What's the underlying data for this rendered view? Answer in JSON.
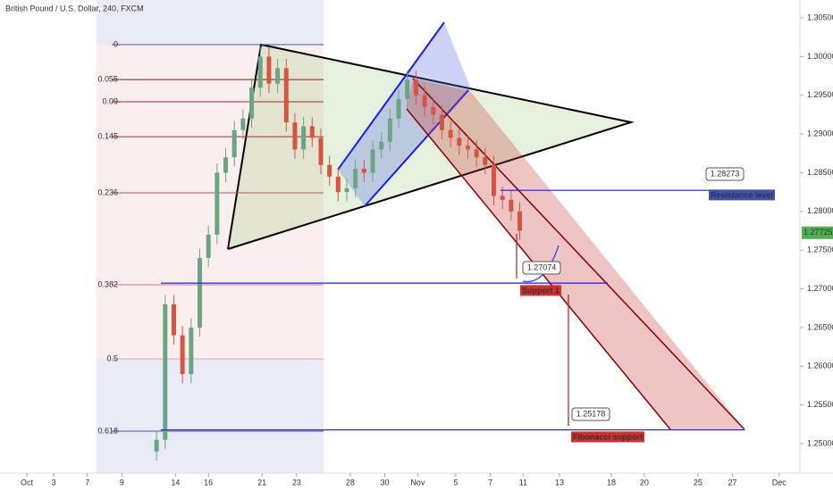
{
  "chart_data": {
    "type": "candlestick",
    "title": "British Pound / U.S. Dollar, 240, FXCM",
    "up_color": "#6ba583",
    "down_color": "#d75442",
    "xlim": [
      -1.55,
      44.7
    ],
    "ylim": [
      1.24389,
      1.30731
    ],
    "xticks": [
      {
        "value": 0,
        "label": "Oct"
      },
      {
        "value": 1.55,
        "label": "3"
      },
      {
        "value": 3.5,
        "label": "7"
      },
      {
        "value": 5.5,
        "label": "9"
      },
      {
        "value": 8.6,
        "label": "14"
      },
      {
        "value": 10.5,
        "label": "16"
      },
      {
        "value": 13.6,
        "label": "21"
      },
      {
        "value": 15.6,
        "label": "23"
      },
      {
        "value": 18.7,
        "label": "28"
      },
      {
        "value": 20.7,
        "label": "30"
      },
      {
        "value": 22.6,
        "label": "Nov"
      },
      {
        "value": 24.8,
        "label": "5"
      },
      {
        "value": 26.8,
        "label": "7"
      },
      {
        "value": 28.7,
        "label": "11"
      },
      {
        "value": 30.8,
        "label": "13"
      },
      {
        "value": 33.8,
        "label": "18"
      },
      {
        "value": 35.7,
        "label": "20"
      },
      {
        "value": 38.8,
        "label": "25"
      },
      {
        "value": 40.8,
        "label": "27"
      },
      {
        "value": 43.5,
        "label": "Dec"
      }
    ],
    "yticks": [
      {
        "value": 1.25,
        "label": "1.25000"
      },
      {
        "value": 1.255,
        "label": "1.25500"
      },
      {
        "value": 1.26,
        "label": "1.26000"
      },
      {
        "value": 1.265,
        "label": "1.26500"
      },
      {
        "value": 1.27,
        "label": "1.27000"
      },
      {
        "value": 1.275,
        "label": "1.27500"
      },
      {
        "value": 1.28,
        "label": "1.28000"
      },
      {
        "value": 1.285,
        "label": "1.28500"
      },
      {
        "value": 1.29,
        "label": "1.29000"
      },
      {
        "value": 1.295,
        "label": "1.29500"
      },
      {
        "value": 1.3,
        "label": "1.30000"
      },
      {
        "value": 1.305,
        "label": "1.30500"
      }
    ],
    "x": [
      7.5,
      8,
      8.5,
      9,
      9.5,
      10,
      10.5,
      11,
      11.5,
      12,
      12.5,
      13,
      13.5,
      14,
      14.5,
      15,
      15.5,
      16,
      16.5,
      17,
      17.5,
      18,
      18.5,
      19,
      19.5,
      20,
      20.5,
      21,
      21.5,
      22,
      22.5,
      23,
      23.5,
      24,
      24.5,
      25,
      25.5,
      26,
      26.5,
      27,
      27.5,
      28,
      28.5
    ],
    "open": [
      1.249,
      1.2505,
      1.268,
      1.264,
      1.259,
      1.265,
      1.274,
      1.277,
      1.285,
      1.287,
      1.2905,
      1.292,
      1.296,
      1.3,
      1.2965,
      1.2985,
      1.2915,
      1.288,
      1.291,
      1.2895,
      1.286,
      1.2845,
      1.2825,
      1.283,
      1.2855,
      1.285,
      1.288,
      1.289,
      1.292,
      1.2945,
      1.297,
      1.295,
      1.2935,
      1.2925,
      1.2905,
      1.2895,
      1.2885,
      1.288,
      1.287,
      1.286,
      1.282,
      1.2815,
      1.28
    ],
    "high": [
      1.2517,
      1.2692,
      1.2692,
      1.2652,
      1.2662,
      1.2752,
      1.2782,
      1.2862,
      1.2882,
      1.2917,
      1.2932,
      1.2972,
      1.3012,
      1.3012,
      1.2997,
      1.2997,
      1.2927,
      1.2922,
      1.2922,
      1.2907,
      1.2872,
      1.2857,
      1.2842,
      1.2867,
      1.2867,
      1.2892,
      1.2902,
      1.2932,
      1.2957,
      1.2982,
      1.2982,
      1.2962,
      1.2947,
      1.2937,
      1.2917,
      1.2907,
      1.2897,
      1.2892,
      1.2882,
      1.2872,
      1.2832,
      1.2827,
      1.2812
    ],
    "low": [
      1.2478,
      1.2493,
      1.2628,
      1.2578,
      1.2578,
      1.2638,
      1.2728,
      1.2758,
      1.2838,
      1.2858,
      1.2893,
      1.2908,
      1.2948,
      1.2953,
      1.2953,
      1.2903,
      1.2868,
      1.2868,
      1.2883,
      1.2848,
      1.2833,
      1.2813,
      1.2813,
      1.2818,
      1.2838,
      1.2838,
      1.2868,
      1.2878,
      1.2908,
      1.2933,
      1.2938,
      1.2923,
      1.2913,
      1.2893,
      1.2883,
      1.2873,
      1.2868,
      1.2858,
      1.2848,
      1.2808,
      1.2803,
      1.2788,
      1.2763
    ],
    "close": [
      1.2505,
      1.268,
      1.264,
      1.259,
      1.265,
      1.274,
      1.277,
      1.285,
      1.287,
      1.2905,
      1.292,
      1.296,
      1.3,
      1.2965,
      1.2985,
      1.2915,
      1.288,
      1.291,
      1.2895,
      1.286,
      1.2845,
      1.2825,
      1.283,
      1.2855,
      1.285,
      1.288,
      1.289,
      1.292,
      1.2945,
      1.297,
      1.295,
      1.2935,
      1.2925,
      1.2905,
      1.2895,
      1.2885,
      1.288,
      1.287,
      1.286,
      1.282,
      1.2815,
      1.28,
      1.2775
    ],
    "fib_levels": [
      {
        "level": 0,
        "price": 1.30154,
        "color": "#3f51b5"
      },
      {
        "level": 0.055,
        "price": 1.29704,
        "color": "#8b1a1a"
      },
      {
        "level": 0.09,
        "price": 1.29416,
        "color": "#a52a2a"
      },
      {
        "level": 0.145,
        "price": 1.28966,
        "color": "#a52a2a"
      },
      {
        "level": 0.236,
        "price": 1.2824,
        "color": "#c0504d"
      },
      {
        "level": 0.382,
        "price": 1.27052,
        "color": "#e07070"
      },
      {
        "level": 0.5,
        "price": 1.26095,
        "color": "#f0a0a0"
      },
      {
        "level": 0.618,
        "price": 1.25161,
        "color": "#3f51b5"
      }
    ],
    "levels": [
      {
        "price": 1.28273,
        "label": "Resistance level",
        "color": "#3f51b5"
      },
      {
        "price": 1.27074,
        "label": "Support 1",
        "color": "#d32f2f"
      },
      {
        "price": 1.25178,
        "label": "Fibonacci support",
        "color": "#d32f2f"
      }
    ],
    "last_price": 1.27725
  }
}
